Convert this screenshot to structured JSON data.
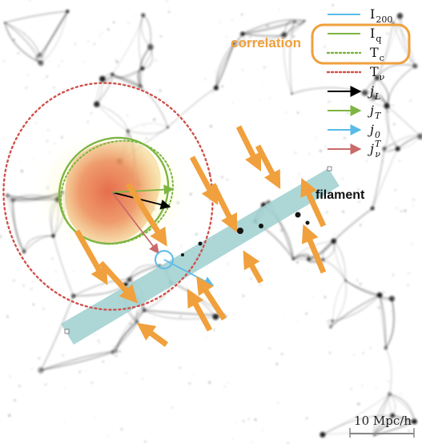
{
  "labels": {
    "correlation": "correlation",
    "filament": "filament",
    "scale_bar": "10 Mpc/h"
  },
  "legend": [
    {
      "base": "I",
      "sub": "200",
      "sup": "",
      "style": "solid",
      "color": "#5bbbe8",
      "kind": "line",
      "italic": false
    },
    {
      "base": "I",
      "sub": "q",
      "sup": "",
      "style": "solid",
      "color": "#7db542",
      "kind": "line",
      "italic": false
    },
    {
      "base": "T",
      "sub": "c",
      "sup": "",
      "style": "dotted",
      "color": "#7db542",
      "kind": "line",
      "italic": false
    },
    {
      "base": "T",
      "sub": "ν",
      "sup": "",
      "style": "dotted",
      "color": "#d0504a",
      "kind": "line",
      "italic": false
    },
    {
      "base": "j",
      "sub": "L",
      "sup": "",
      "style": "solid",
      "color": "#000000",
      "kind": "arrow",
      "italic": true
    },
    {
      "base": "j",
      "sub": "T",
      "sup": "",
      "style": "solid",
      "color": "#7db542",
      "kind": "arrow",
      "italic": true
    },
    {
      "base": "j",
      "sub": "0",
      "sup": "",
      "style": "solid",
      "color": "#5bbbe8",
      "kind": "arrow",
      "italic": true
    },
    {
      "base": "j",
      "sub": "ν",
      "sup": "T",
      "style": "solid",
      "color": "#c86a6a",
      "kind": "arrow",
      "italic": true
    }
  ],
  "colors": {
    "correlation_orange": "#f0a03c",
    "inflow_arrow": "#f0a03c",
    "filament_band": "#9fcfcf",
    "halo_red": "#e8704e",
    "ellipse_green": "#7db542",
    "ellipse_red": "#d0504a",
    "background_web": "#111111"
  }
}
